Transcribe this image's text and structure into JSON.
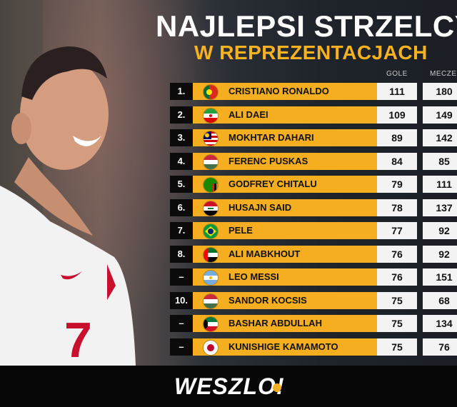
{
  "header": {
    "title_line1": "NAJLEPSI STRZELCY",
    "title_line2": "W REPREZENTACJACH"
  },
  "columns": {
    "goals": "GOLE",
    "apps": "MECZE"
  },
  "colors": {
    "accent": "#f4ae1f",
    "rank_bg": "#0b0b0b",
    "value_bg": "#f3f3f3"
  },
  "rows": [
    {
      "rank": "1.",
      "flag": "portugal-flag-icon",
      "name": "CRISTIANO RONALDO",
      "goals": "111",
      "apps": "180"
    },
    {
      "rank": "2.",
      "flag": "iran-flag-icon",
      "name": "ALI DAEI",
      "goals": "109",
      "apps": "149"
    },
    {
      "rank": "3.",
      "flag": "malaysia-flag-icon",
      "name": "MOKHTAR DAHARI",
      "goals": "89",
      "apps": "142"
    },
    {
      "rank": "4.",
      "flag": "hungary-flag-icon",
      "name": "FERENC PUSKAS",
      "goals": "84",
      "apps": "85"
    },
    {
      "rank": "5.",
      "flag": "zambia-flag-icon",
      "name": "GODFREY CHITALU",
      "goals": "79",
      "apps": "111"
    },
    {
      "rank": "6.",
      "flag": "iraq-flag-icon",
      "name": "HUSAJN SAID",
      "goals": "78",
      "apps": "137"
    },
    {
      "rank": "7.",
      "flag": "brazil-flag-icon",
      "name": "PELE",
      "goals": "77",
      "apps": "92"
    },
    {
      "rank": "8.",
      "flag": "uae-flag-icon",
      "name": "ALI MABKHOUT",
      "goals": "76",
      "apps": "92"
    },
    {
      "rank": "–",
      "flag": "argentina-flag-icon",
      "name": "LEO MESSI",
      "goals": "76",
      "apps": "151"
    },
    {
      "rank": "10.",
      "flag": "hungary-flag-icon",
      "name": "SANDOR KOCSIS",
      "goals": "75",
      "apps": "68"
    },
    {
      "rank": "–",
      "flag": "kuwait-flag-icon",
      "name": "BASHAR ABDULLAH",
      "goals": "75",
      "apps": "134"
    },
    {
      "rank": "–",
      "flag": "japan-flag-icon",
      "name": "KUNISHIGE KAMAMOTO",
      "goals": "75",
      "apps": "76"
    }
  ],
  "footer": {
    "logo": "WESZLO!"
  }
}
